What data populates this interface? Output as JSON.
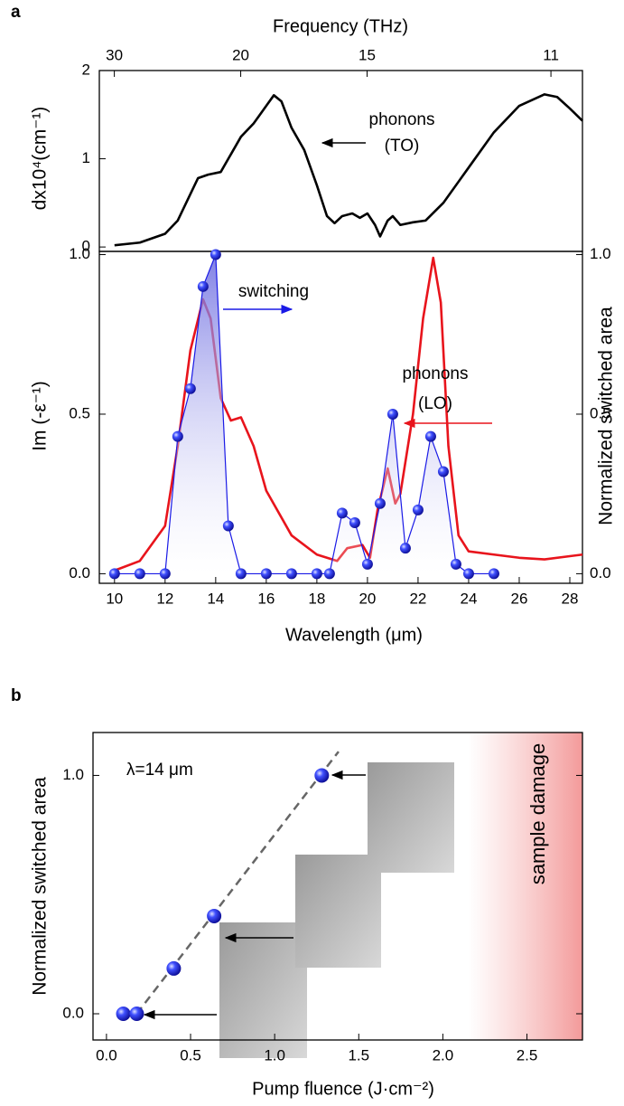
{
  "chart_data": [
    {
      "type": "line",
      "panel": "a",
      "x2label": "Frequency (THz)",
      "ylabel": "dx10⁴(cm⁻¹)",
      "xlim": [
        9.4,
        28.5
      ],
      "ylim": [
        -0.05,
        2
      ],
      "yticks": [
        0,
        1,
        2
      ],
      "x2ticks": [
        30,
        20,
        15,
        11
      ],
      "annotations": [
        "phonons",
        "(TO)"
      ],
      "series": [
        {
          "color": "#000000",
          "x": [
            10,
            11,
            12,
            12.5,
            13,
            13.3,
            13.7,
            14.2,
            14.6,
            15,
            15.5,
            16,
            16.3,
            16.6,
            17,
            17.5,
            18,
            18.4,
            18.7,
            19,
            19.4,
            19.7,
            20,
            20.3,
            20.5,
            20.8,
            21,
            21.3,
            21.8,
            22.3,
            23,
            24,
            25,
            26,
            27,
            27.5,
            28,
            28.5
          ],
          "values": [
            0.02,
            0.05,
            0.15,
            0.3,
            0.6,
            0.78,
            0.82,
            0.85,
            1.05,
            1.25,
            1.4,
            1.6,
            1.72,
            1.65,
            1.35,
            1.1,
            0.7,
            0.35,
            0.27,
            0.35,
            0.38,
            0.33,
            0.38,
            0.25,
            0.12,
            0.3,
            0.35,
            0.25,
            0.28,
            0.3,
            0.5,
            0.9,
            1.3,
            1.6,
            1.73,
            1.7,
            1.57,
            1.43
          ]
        }
      ]
    },
    {
      "type": "line",
      "xlabel": "Wavelength (μm)",
      "ylabel": "Im (-ε⁻¹)",
      "y2label": "Normalized switched area",
      "xlim": [
        9.4,
        28.5
      ],
      "xticks": [
        10,
        12,
        14,
        16,
        18,
        20,
        22,
        24,
        26,
        28
      ],
      "ylim": [
        -0.03,
        1.01
      ],
      "yticks": [
        {
          "value": 0,
          "label": "0.0"
        },
        {
          "value": 0.5,
          "label": "0.5"
        },
        {
          "value": 1,
          "label": "1.0"
        }
      ],
      "y2lim": [
        -0.03,
        1.01
      ],
      "y2ticks": [
        {
          "value": 0,
          "label": "0.0"
        },
        {
          "value": 0.5,
          "label": "0.5"
        },
        {
          "value": 1,
          "label": "1.0"
        }
      ],
      "annotations": [
        "switching",
        "phonons",
        "(LO)"
      ],
      "series": [
        {
          "color": "#e8141c",
          "x": [
            10,
            11,
            12,
            12.5,
            13,
            13.5,
            13.8,
            14.2,
            14.6,
            15,
            15.5,
            16,
            17,
            18,
            18.8,
            19.2,
            19.8,
            20.1,
            20.4,
            20.8,
            21.1,
            21.3,
            21.8,
            22.2,
            22.6,
            22.9,
            23.2,
            23.6,
            24,
            25,
            26,
            27,
            28,
            28.5
          ],
          "values": [
            0.01,
            0.04,
            0.15,
            0.4,
            0.7,
            0.86,
            0.8,
            0.55,
            0.48,
            0.49,
            0.4,
            0.26,
            0.12,
            0.06,
            0.04,
            0.08,
            0.09,
            0.05,
            0.2,
            0.33,
            0.22,
            0.25,
            0.5,
            0.8,
            0.99,
            0.85,
            0.4,
            0.12,
            0.07,
            0.06,
            0.05,
            0.045,
            0.055,
            0.06
          ]
        },
        {
          "color": "#1a1ae6",
          "axis": "y2",
          "marker": "sphere",
          "fill": true,
          "x": [
            10,
            11,
            12,
            12.5,
            13,
            13.5,
            14,
            14.5,
            15,
            16,
            17,
            18,
            18.5,
            19,
            19.5,
            20,
            20.5,
            21,
            21.5,
            22,
            22.5,
            23,
            23.5,
            24,
            25
          ],
          "values": [
            0,
            0,
            0,
            0.43,
            0.58,
            0.9,
            1.0,
            0.15,
            0,
            0,
            0,
            0,
            0,
            0.19,
            0.16,
            0.03,
            0.22,
            0.5,
            0.08,
            0.2,
            0.43,
            0.32,
            0.03,
            0,
            0
          ]
        }
      ]
    },
    {
      "type": "scatter",
      "panel": "b",
      "xlabel": "Pump fluence (J·cm⁻²)",
      "ylabel": "Normalized switched area",
      "xlim": [
        -0.08,
        2.83
      ],
      "xticks": [
        {
          "value": 0,
          "label": "0.0"
        },
        {
          "value": 0.5,
          "label": "0.5"
        },
        {
          "value": 1,
          "label": "1.0"
        },
        {
          "value": 1.5,
          "label": "1.5"
        },
        {
          "value": 2,
          "label": "2.0"
        },
        {
          "value": 2.5,
          "label": "2.5"
        }
      ],
      "ylim": [
        -0.11,
        1.18
      ],
      "yticks": [
        {
          "value": 0,
          "label": "0.0"
        },
        {
          "value": 1,
          "label": "1.0"
        }
      ],
      "annotations": [
        "λ=14 μm",
        "sample damage"
      ],
      "shaded_region": [
        2.15,
        2.83
      ],
      "fit": {
        "x": [
          0.18,
          1.38
        ],
        "values": [
          0,
          1.1
        ]
      },
      "series": [
        {
          "color": "#1a1ae6",
          "marker": "sphere",
          "x": [
            0.1,
            0.18,
            0.4,
            0.64,
            1.28
          ],
          "values": [
            0,
            0,
            0.19,
            0.41,
            1.0
          ]
        }
      ]
    }
  ]
}
